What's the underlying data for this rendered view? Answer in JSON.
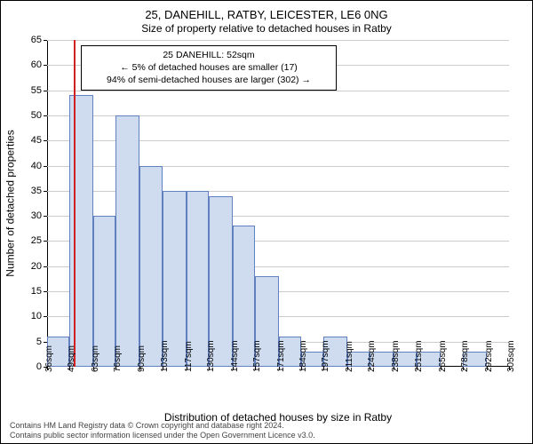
{
  "title_line1": "25, DANEHILL, RATBY, LEICESTER, LE6 0NG",
  "title_line2": "Size of property relative to detached houses in Ratby",
  "ylabel": "Number of detached properties",
  "xlabel": "Distribution of detached houses by size in Ratby",
  "license_line1": "Contains HM Land Registry data © Crown copyright and database right 2024.",
  "license_line2": "Contains public sector information licensed under the Open Government Licence v3.0.",
  "info_box": {
    "line1": "25 DANEHILL: 52sqm",
    "line2": "← 5% of detached houses are smaller (17)",
    "line3": "94% of semi-detached houses are larger (302) →"
  },
  "chart": {
    "type": "histogram",
    "ylim": [
      0,
      65
    ],
    "ytick_step": 5,
    "xticks": [
      36,
      49,
      63,
      76,
      90,
      103,
      117,
      130,
      144,
      157,
      171,
      184,
      197,
      211,
      224,
      238,
      251,
      265,
      278,
      292,
      305
    ],
    "xtick_suffix": "sqm",
    "bar_fill": "#cfdcf0",
    "bar_border": "#6080c0",
    "grid_color": "#cccccc",
    "marker_color": "#d02020",
    "marker_x": 52,
    "values": [
      6,
      54,
      30,
      50,
      40,
      35,
      35,
      34,
      28,
      18,
      6,
      3,
      6,
      3,
      3,
      3,
      3,
      0,
      3,
      0
    ],
    "background_color": "#ffffff",
    "title_fontsize": 13,
    "subtitle_fontsize": 12,
    "axis_label_fontsize": 12,
    "tick_fontsize": 11,
    "xtick_fontsize": 10,
    "info_fontsize": 10.5,
    "license_fontsize": 9,
    "license_color": "#444444"
  }
}
